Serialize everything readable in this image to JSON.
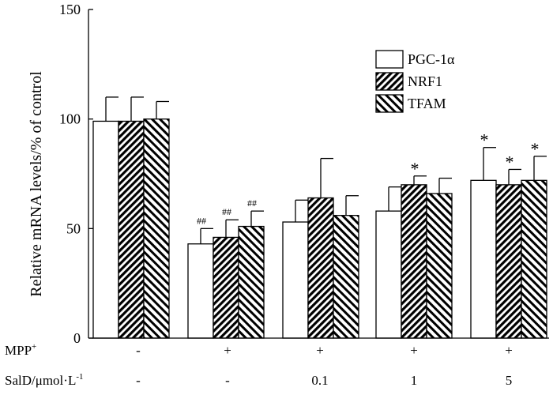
{
  "chart_data": {
    "type": "bar",
    "ylabel": "Relative mRNA levels/% of control",
    "ylim": [
      0,
      150
    ],
    "yticks": [
      0,
      50,
      100,
      150
    ],
    "legend_position": "top-right",
    "colors": {
      "bar_fill": "#ffffff",
      "stroke": "#000000",
      "hatch": "#000000",
      "hatch_gap": "#ffffff"
    },
    "series": [
      {
        "name": "PGC-1α",
        "pattern": "none"
      },
      {
        "name": "NRF1",
        "pattern": "dense-diagonal"
      },
      {
        "name": "TFAM",
        "pattern": "back-diagonal"
      }
    ],
    "groups": [
      {
        "values": [
          99,
          99,
          100
        ],
        "errors": [
          11,
          11,
          8
        ],
        "annotations": [
          "",
          "",
          ""
        ]
      },
      {
        "values": [
          43,
          46,
          51
        ],
        "errors": [
          7,
          8,
          7
        ],
        "annotations": [
          "##",
          "##",
          "##"
        ]
      },
      {
        "values": [
          53,
          64,
          56
        ],
        "errors": [
          10,
          18,
          9
        ],
        "annotations": [
          "",
          "",
          ""
        ]
      },
      {
        "values": [
          58,
          70,
          66
        ],
        "errors": [
          11,
          4,
          7
        ],
        "annotations": [
          "",
          "*",
          ""
        ]
      },
      {
        "values": [
          72,
          70,
          72
        ],
        "errors": [
          15,
          7,
          11
        ],
        "annotations": [
          "*",
          "*",
          "*"
        ]
      }
    ],
    "condition_rows": [
      {
        "label": "MPP",
        "superscript": "+",
        "values": [
          "-",
          "+",
          "+",
          "+",
          "+"
        ]
      },
      {
        "label": "SalD/μmol·L",
        "superscript": "-1",
        "values": [
          "-",
          "-",
          "0.1",
          "1",
          "5"
        ]
      }
    ]
  }
}
